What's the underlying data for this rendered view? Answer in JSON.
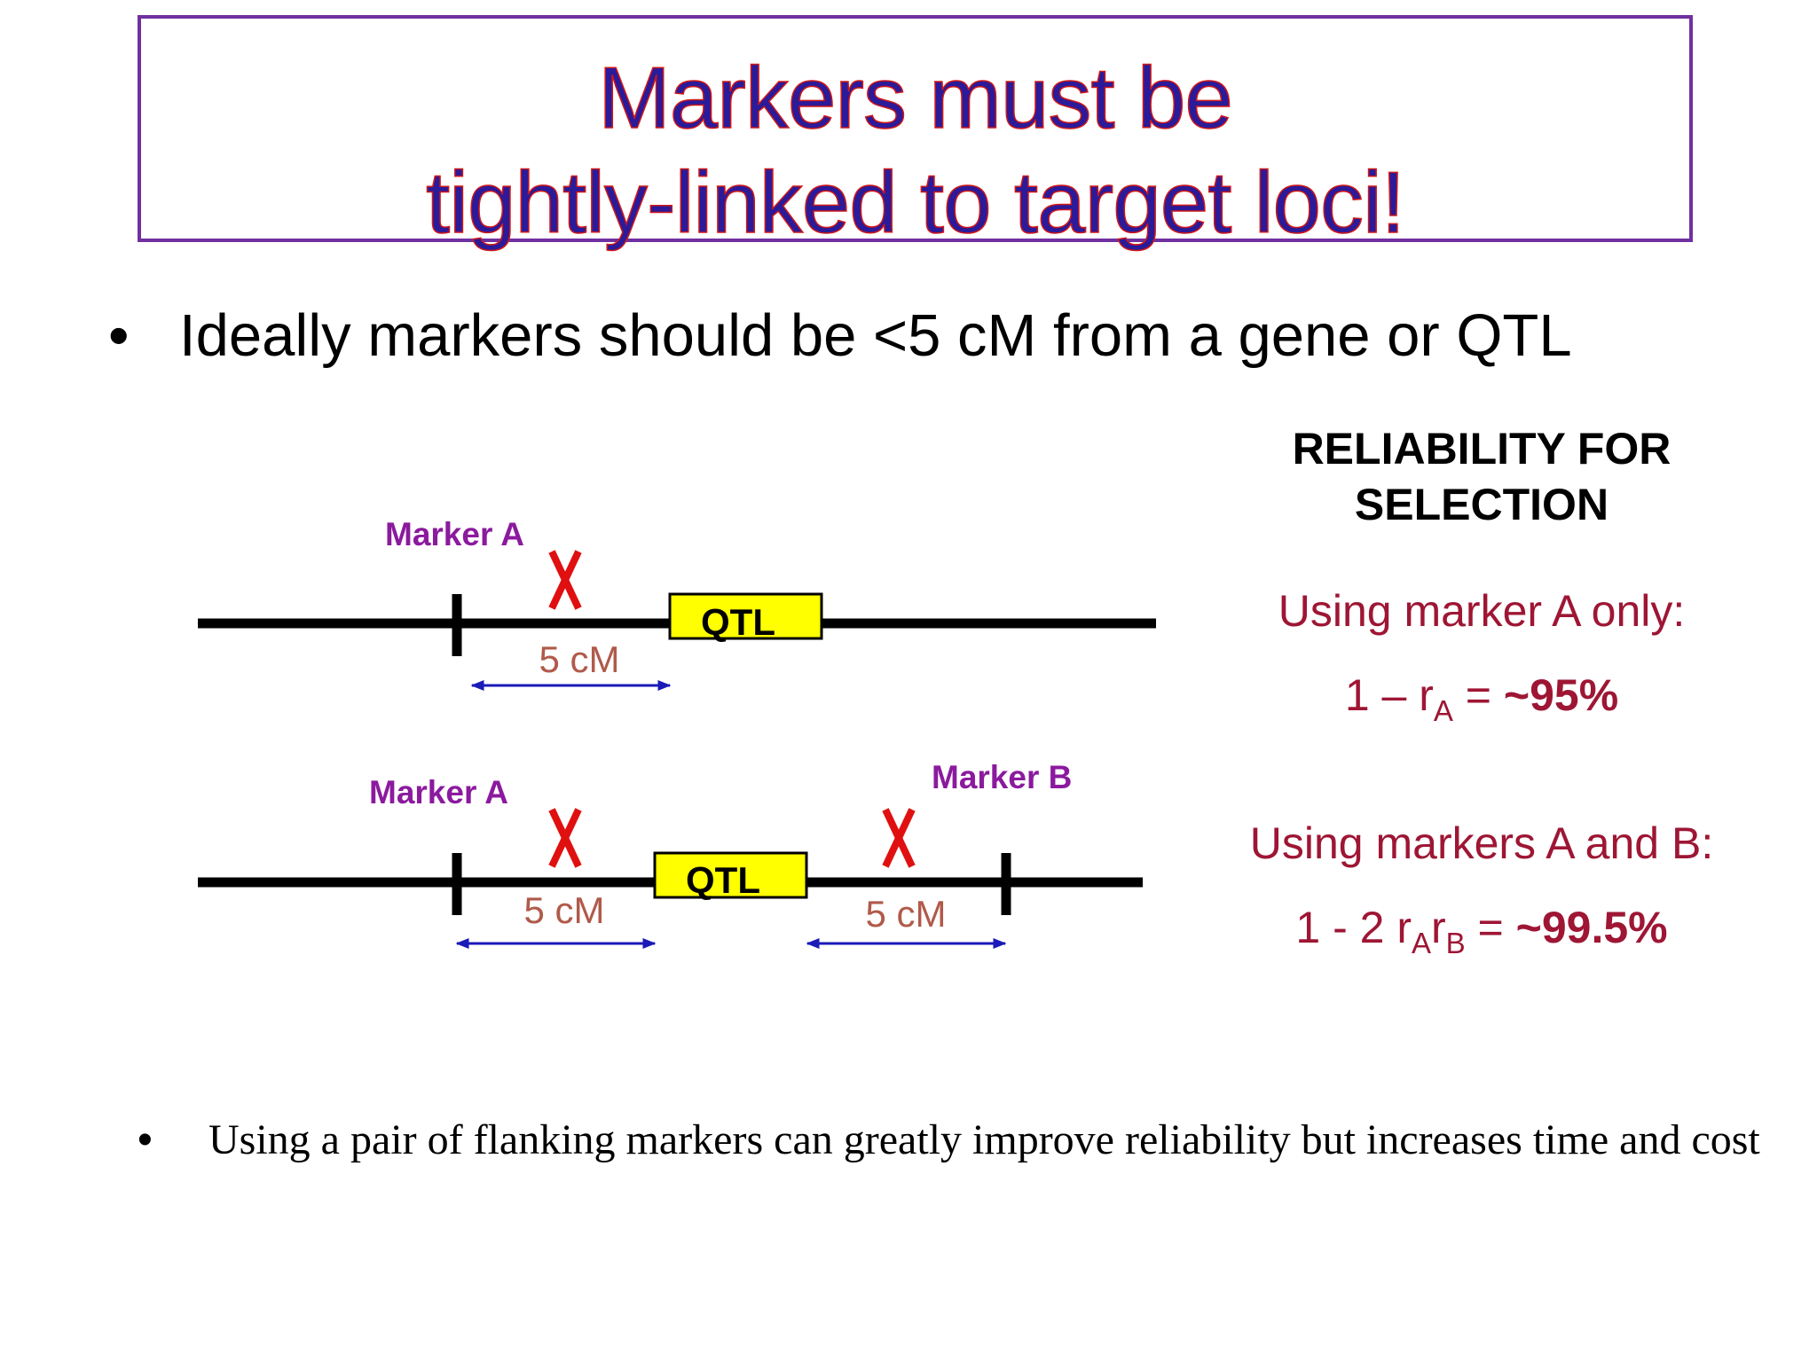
{
  "title": {
    "line1": "Markers must be",
    "line2": "tightly-linked to target loci!"
  },
  "bullets": {
    "dot": "•",
    "main": "Ideally markers should be <5 cM from a gene or QTL",
    "bottom": "Using a pair of flanking markers can greatly improve reliability but increases time and cost"
  },
  "diagram": {
    "top": {
      "marker_a_label": "Marker A",
      "qtl_label": "QTL",
      "distance_label": "5 cM"
    },
    "bottom": {
      "marker_a_label": "Marker A",
      "marker_b_label": "Marker B",
      "qtl_label": "QTL",
      "distance_left_label": "5 cM",
      "distance_right_label": "5 cM"
    },
    "crossover_symbol": "X"
  },
  "reliability": {
    "heading_line1": "RELIABILITY FOR",
    "heading_line2": "SELECTION",
    "case_a_label": "Using marker A only:",
    "case_a_formula_prefix": "1 – r",
    "case_a_sub": "A",
    "case_a_eq": " = ",
    "case_a_value": "~95%",
    "case_ab_label": "Using markers A and B:",
    "case_ab_formula_prefix": "1 - 2 r",
    "case_ab_sub1": "A",
    "case_ab_mid": "r",
    "case_ab_sub2": "B",
    "case_ab_eq": " = ",
    "case_ab_value": "~99.5%"
  },
  "colors": {
    "title_fill": "#2b1a99",
    "title_outline": "#d01818",
    "title_border": "#7030a0",
    "marker_label": "#8b1a9e",
    "crossover": "#e01010",
    "distance_text": "#b05a4a",
    "arrow": "#1a1ab8",
    "qtl_box": "#ffff00",
    "reliability_text": "#9e1634"
  }
}
